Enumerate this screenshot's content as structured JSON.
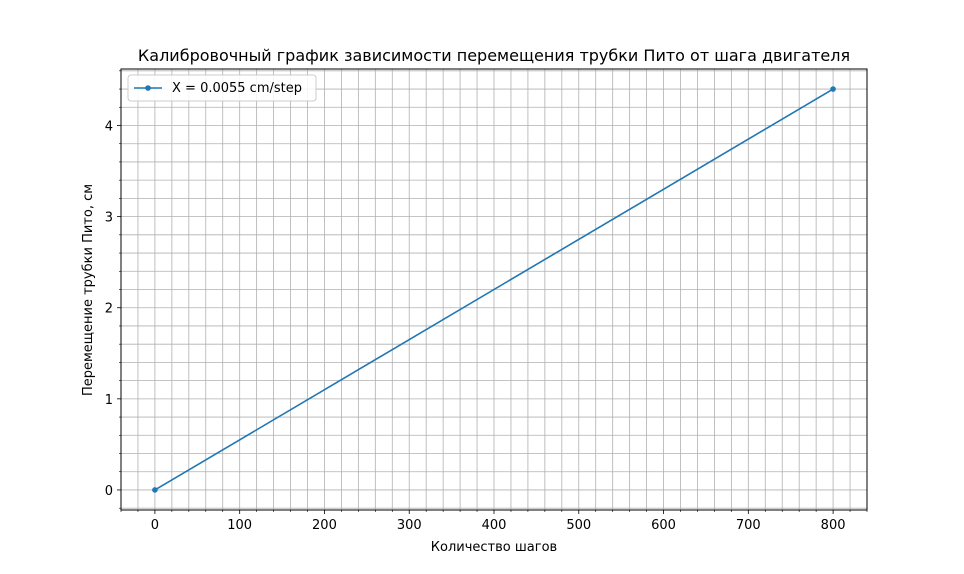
{
  "chart_data": {
    "type": "line",
    "title": "Калибровочный график зависимости перемещения трубки Пито от шага двигателя",
    "xlabel": "Количество шагов",
    "ylabel": "Перемещение трубки Пито, см",
    "xlim": [
      -40,
      840
    ],
    "ylim": [
      -0.22,
      4.62
    ],
    "x_ticks": [
      0,
      100,
      200,
      300,
      400,
      500,
      600,
      700,
      800
    ],
    "x_tick_labels": [
      "0",
      "100",
      "200",
      "300",
      "400",
      "500",
      "600",
      "700",
      "800"
    ],
    "x_minor_step": 20,
    "y_ticks": [
      0,
      1,
      2,
      3,
      4
    ],
    "y_tick_labels": [
      "0",
      "1",
      "2",
      "3",
      "4"
    ],
    "y_minor_step": 0.2,
    "grid": true,
    "legend_position": "upper-left",
    "series": [
      {
        "name": "X = 0.0055 cm/step",
        "color": "#1f77b4",
        "marker": "circle",
        "x": [
          0,
          800
        ],
        "y": [
          0,
          4.4
        ]
      }
    ]
  }
}
